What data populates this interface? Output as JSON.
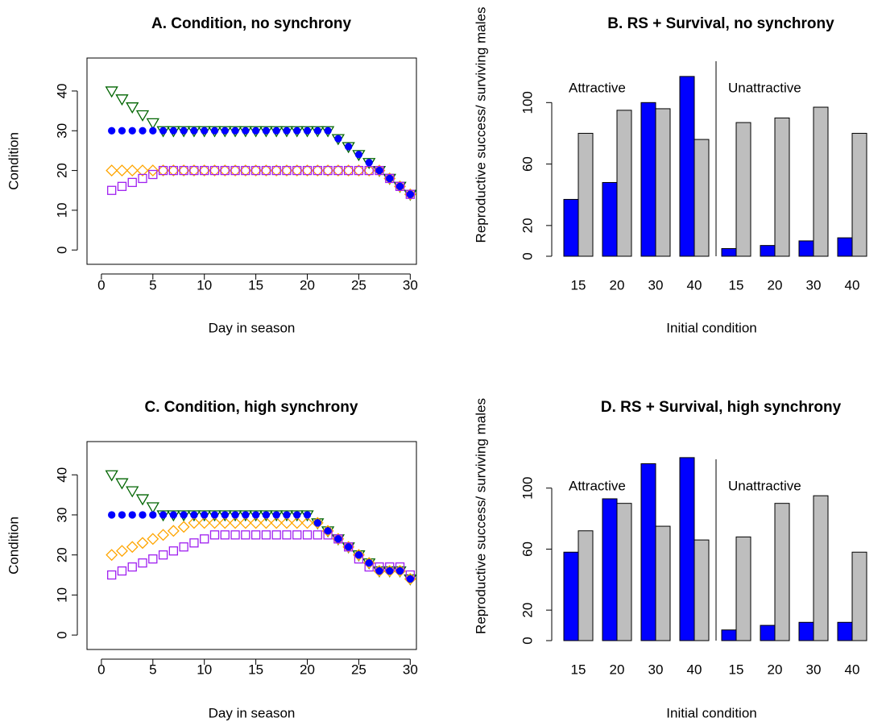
{
  "chart_data": [
    {
      "type": "scatter",
      "title": "A. Condition, no synchrony",
      "xlabel": "Day in season",
      "ylabel": "Condition",
      "x": [
        1,
        2,
        3,
        4,
        5,
        6,
        7,
        8,
        9,
        10,
        11,
        12,
        13,
        14,
        15,
        16,
        17,
        18,
        19,
        20,
        21,
        22,
        23,
        24,
        25,
        26,
        27,
        28,
        29,
        30
      ],
      "xlim": [
        -1.4,
        30.6
      ],
      "ylim": [
        -3.6,
        48.3
      ],
      "xticks": [
        0,
        5,
        10,
        15,
        20,
        25,
        30
      ],
      "yticks": [
        0,
        10,
        20,
        30,
        40
      ],
      "series": [
        {
          "color": "#006400",
          "shape": "triangle-down",
          "filled": false,
          "values": [
            40,
            38,
            36,
            34,
            32,
            30,
            30,
            30,
            30,
            30,
            30,
            30,
            30,
            30,
            30,
            30,
            30,
            30,
            30,
            30,
            30,
            30,
            28,
            26,
            24,
            22,
            20,
            18,
            16,
            14
          ]
        },
        {
          "color": "#ffa500",
          "shape": "diamond",
          "filled": false,
          "values": [
            20,
            20,
            20,
            20,
            20,
            20,
            20,
            20,
            20,
            20,
            20,
            20,
            20,
            20,
            20,
            20,
            20,
            20,
            20,
            20,
            20,
            20,
            20,
            20,
            20,
            20,
            20,
            18,
            16,
            14
          ]
        },
        {
          "color": "#a020f0",
          "shape": "square",
          "filled": false,
          "values": [
            15,
            16,
            17,
            18,
            19,
            20,
            20,
            20,
            20,
            20,
            20,
            20,
            20,
            20,
            20,
            20,
            20,
            20,
            20,
            20,
            20,
            20,
            20,
            20,
            20,
            20,
            20,
            18,
            16,
            14
          ]
        },
        {
          "color": "#0000ff",
          "shape": "circle",
          "filled": true,
          "values": [
            30,
            30,
            30,
            30,
            30,
            30,
            30,
            30,
            30,
            30,
            30,
            30,
            30,
            30,
            30,
            30,
            30,
            30,
            30,
            30,
            30,
            30,
            28,
            26,
            24,
            22,
            20,
            18,
            16,
            14
          ]
        }
      ]
    },
    {
      "type": "bar",
      "title": "B. RS + Survival, no synchrony",
      "xlabel": "Initial condition",
      "ylabel": "Reproductive success/ surviving males",
      "categories": [
        "15",
        "20",
        "30",
        "40",
        "15",
        "20",
        "30",
        "40"
      ],
      "group_labels": [
        "Attractive",
        "Unattractive"
      ],
      "ylim": [
        0,
        129
      ],
      "yticks": [
        0,
        20,
        60,
        100
      ],
      "series": [
        {
          "color": "#0000ff",
          "values": [
            37,
            48,
            100,
            117,
            5,
            7,
            10,
            12
          ]
        },
        {
          "color": "#bebebe",
          "values": [
            80,
            95,
            96,
            76,
            87,
            90,
            97,
            80
          ]
        }
      ]
    },
    {
      "type": "scatter",
      "title": "C. Condition, high synchrony",
      "xlabel": "Day in season",
      "ylabel": "Condition",
      "x": [
        1,
        2,
        3,
        4,
        5,
        6,
        7,
        8,
        9,
        10,
        11,
        12,
        13,
        14,
        15,
        16,
        17,
        18,
        19,
        20,
        21,
        22,
        23,
        24,
        25,
        26,
        27,
        28,
        29,
        30
      ],
      "xlim": [
        -1.4,
        30.6
      ],
      "ylim": [
        -3.6,
        48.3
      ],
      "xticks": [
        0,
        5,
        10,
        15,
        20,
        25,
        30
      ],
      "yticks": [
        0,
        10,
        20,
        30,
        40
      ],
      "series": [
        {
          "color": "#006400",
          "shape": "triangle-down",
          "filled": false,
          "values": [
            40,
            38,
            36,
            34,
            32,
            30,
            30,
            30,
            30,
            30,
            30,
            30,
            30,
            30,
            30,
            30,
            30,
            30,
            30,
            30,
            28,
            26,
            24,
            22,
            20,
            18,
            16,
            16,
            16,
            14
          ]
        },
        {
          "color": "#ffa500",
          "shape": "diamond",
          "filled": false,
          "values": [
            20,
            21,
            22,
            23,
            24,
            25,
            26,
            27,
            28,
            28,
            28,
            28,
            28,
            28,
            28,
            28,
            28,
            28,
            28,
            28,
            28,
            26,
            24,
            22,
            20,
            18,
            16,
            16,
            16,
            14
          ]
        },
        {
          "color": "#a020f0",
          "shape": "square",
          "filled": false,
          "values": [
            15,
            16,
            17,
            18,
            19,
            20,
            21,
            22,
            23,
            24,
            25,
            25,
            25,
            25,
            25,
            25,
            25,
            25,
            25,
            25,
            25,
            25,
            24,
            22,
            19,
            17,
            17,
            17,
            17,
            15
          ]
        },
        {
          "color": "#0000ff",
          "shape": "circle",
          "filled": true,
          "values": [
            30,
            30,
            30,
            30,
            30,
            30,
            30,
            30,
            30,
            30,
            30,
            30,
            30,
            30,
            30,
            30,
            30,
            30,
            30,
            30,
            28,
            26,
            24,
            22,
            20,
            18,
            16,
            16,
            16,
            14
          ]
        }
      ]
    },
    {
      "type": "bar",
      "title": "D. RS + Survival, high synchrony",
      "xlabel": "Initial condition",
      "ylabel": "Reproductive success/ surviving males",
      "categories": [
        "15",
        "20",
        "30",
        "40",
        "15",
        "20",
        "30",
        "40"
      ],
      "group_labels": [
        "Attractive",
        "Unattractive"
      ],
      "ylim": [
        0,
        121
      ],
      "yticks": [
        0,
        20,
        60,
        100
      ],
      "series": [
        {
          "color": "#0000ff",
          "values": [
            58,
            93,
            116,
            120,
            7,
            10,
            12,
            12
          ]
        },
        {
          "color": "#bebebe",
          "values": [
            72,
            90,
            75,
            66,
            68,
            90,
            95,
            58
          ]
        }
      ]
    }
  ]
}
